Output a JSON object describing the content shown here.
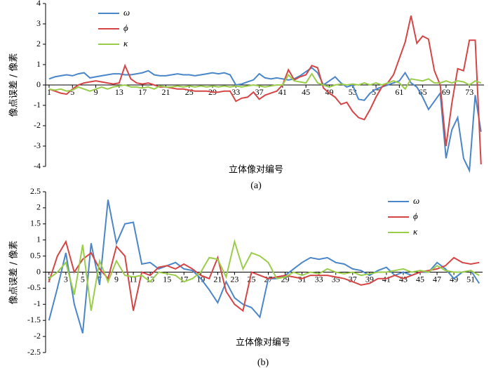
{
  "chart_data": [
    {
      "type": "line",
      "caption": "(a)",
      "xlabel": "立体像对编号",
      "ylabel": "像点误差 / 像素",
      "legend": "upper left",
      "x": [
        1,
        2,
        3,
        4,
        5,
        6,
        7,
        8,
        9,
        10,
        11,
        12,
        13,
        14,
        15,
        16,
        17,
        18,
        19,
        20,
        21,
        22,
        23,
        24,
        25,
        26,
        27,
        28,
        29,
        30,
        31,
        32,
        33,
        34,
        35,
        36,
        37,
        38,
        39,
        40,
        41,
        42,
        43,
        44,
        45,
        46,
        47,
        48,
        49,
        50,
        51,
        52,
        53,
        54,
        55,
        56,
        57,
        58,
        59,
        60,
        61,
        62,
        63,
        64,
        65,
        66,
        67,
        68,
        69,
        70,
        71,
        72,
        73,
        74,
        75
      ],
      "xlim": [
        0.4,
        75.5
      ],
      "xticks": [
        1,
        5,
        9,
        13,
        17,
        21,
        25,
        29,
        33,
        37,
        41,
        45,
        49,
        53,
        57,
        61,
        65,
        69,
        73
      ],
      "ylim": [
        -4,
        4
      ],
      "yticks": [
        -4,
        -3,
        -2,
        -1,
        0,
        1,
        2,
        3,
        4
      ],
      "series": [
        {
          "name": "ω",
          "color": "#4a86c8",
          "values": [
            0.3,
            0.4,
            0.45,
            0.5,
            0.45,
            0.55,
            0.6,
            0.35,
            0.4,
            0.45,
            0.5,
            0.55,
            0.55,
            0.5,
            0.5,
            0.55,
            0.6,
            0.7,
            0.5,
            0.45,
            0.45,
            0.5,
            0.55,
            0.5,
            0.5,
            0.45,
            0.5,
            0.55,
            0.6,
            0.55,
            0.6,
            0.5,
            0.0,
            0.05,
            0.15,
            0.25,
            0.55,
            0.35,
            0.3,
            0.35,
            0.3,
            0.25,
            0.3,
            0.45,
            0.65,
            0.85,
            0.6,
            0.0,
            0.2,
            0.4,
            0.1,
            -0.1,
            0.0,
            -0.7,
            -0.75,
            -0.4,
            -0.2,
            -0.1,
            0.0,
            0.1,
            0.2,
            0.6,
            0.1,
            -0.1,
            -0.6,
            -1.2,
            -0.8,
            -0.4,
            -3.6,
            -2.2,
            -1.6,
            -3.6,
            -4.2,
            -0.5,
            -2.3
          ]
        },
        {
          "name": "ϕ",
          "color": "#d64545",
          "values": [
            -0.2,
            -0.3,
            -0.4,
            -0.45,
            -0.2,
            0.0,
            0.1,
            0.15,
            0.2,
            0.15,
            0.1,
            0.05,
            0.1,
            0.95,
            0.3,
            0.1,
            0.05,
            0.1,
            0.0,
            -0.1,
            -0.1,
            -0.15,
            -0.2,
            -0.2,
            -0.25,
            -0.3,
            -0.3,
            -0.3,
            -0.35,
            -0.35,
            -0.3,
            -0.3,
            -0.8,
            -0.65,
            -0.6,
            -0.35,
            -0.7,
            -0.5,
            -0.4,
            -0.3,
            0.0,
            0.75,
            0.25,
            0.4,
            0.5,
            0.95,
            0.85,
            -0.15,
            -0.4,
            -0.6,
            -0.95,
            -0.85,
            -1.3,
            -1.6,
            -1.7,
            -1.2,
            -0.6,
            -0.1,
            0.1,
            0.5,
            1.3,
            2.1,
            3.4,
            2.05,
            2.4,
            2.25,
            0.7,
            0.0,
            -3.0,
            -0.9,
            0.8,
            0.7,
            2.2,
            2.2,
            -3.9
          ]
        },
        {
          "name": "κ",
          "color": "#9acd4a",
          "values": [
            -0.2,
            -0.25,
            -0.2,
            -0.3,
            -0.25,
            -0.1,
            -0.2,
            -0.3,
            -0.2,
            -0.1,
            -0.2,
            -0.1,
            -0.05,
            0.0,
            -0.1,
            -0.1,
            -0.15,
            -0.1,
            -0.2,
            -0.05,
            -0.1,
            -0.1,
            -0.05,
            -0.1,
            -0.05,
            -0.1,
            -0.05,
            -0.1,
            -0.05,
            -0.1,
            -0.05,
            -0.1,
            -0.05,
            -0.1,
            -0.05,
            0.0,
            -0.05,
            -0.1,
            -0.05,
            0.0,
            0.0,
            0.5,
            0.2,
            0.15,
            0.1,
            0.55,
            0.1,
            0.0,
            -0.1,
            0.0,
            0.05,
            0.0,
            0.05,
            0.0,
            0.1,
            0.0,
            0.1,
            0.0,
            0.1,
            0.2,
            0.1,
            -0.2,
            0.3,
            0.25,
            0.2,
            0.3,
            0.1,
            0.1,
            0.2,
            0.1,
            0.2,
            0.15,
            0.0,
            0.2,
            0.1
          ]
        }
      ]
    },
    {
      "type": "line",
      "caption": "(b)",
      "xlabel": "立体像对编号",
      "ylabel": "像点误差 / 像素",
      "legend": "upper right",
      "x": [
        1,
        2,
        3,
        4,
        5,
        6,
        7,
        8,
        9,
        10,
        11,
        12,
        13,
        14,
        15,
        16,
        17,
        18,
        19,
        20,
        21,
        22,
        23,
        24,
        25,
        26,
        27,
        28,
        29,
        30,
        31,
        32,
        33,
        34,
        35,
        36,
        37,
        38,
        39,
        40,
        41,
        42,
        43,
        44,
        45,
        46,
        47,
        48,
        49,
        50,
        51,
        52
      ],
      "xlim": [
        0.6,
        52.4
      ],
      "xticks": [
        1,
        3,
        5,
        7,
        9,
        11,
        13,
        15,
        17,
        19,
        21,
        23,
        25,
        27,
        29,
        31,
        33,
        35,
        37,
        39,
        41,
        43,
        45,
        47,
        49,
        51
      ],
      "ylim": [
        -2.5,
        2.5
      ],
      "yticks": [
        -2.5,
        -2,
        -1.5,
        -1,
        -0.5,
        0,
        0.5,
        1,
        1.5,
        2,
        2.5
      ],
      "series": [
        {
          "name": "ω",
          "color": "#4a86c8",
          "values": [
            -1.5,
            -0.5,
            0.6,
            -1.0,
            -1.9,
            0.9,
            -0.4,
            2.25,
            0.9,
            1.5,
            1.55,
            0.25,
            0.3,
            0.1,
            0.2,
            0.3,
            0.1,
            0.05,
            -0.2,
            -0.55,
            -0.95,
            -0.3,
            -0.8,
            -1.0,
            -1.1,
            -1.4,
            -0.2,
            -0.2,
            -0.1,
            0.1,
            0.3,
            0.45,
            0.4,
            0.45,
            0.3,
            0.25,
            0.1,
            0.05,
            -0.1,
            0.05,
            0.15,
            -0.1,
            0.0,
            -0.1,
            0.0,
            0.0,
            0.3,
            0.1,
            -0.2,
            0.0,
            0.05,
            -0.35
          ]
        },
        {
          "name": "ϕ",
          "color": "#d64545",
          "values": [
            -0.3,
            0.5,
            0.95,
            0.0,
            0.4,
            0.6,
            0.1,
            -0.2,
            0.8,
            0.5,
            -1.2,
            0.0,
            -0.1,
            0.15,
            0.2,
            0.1,
            0.25,
            0.1,
            -0.1,
            -0.2,
            0.45,
            -0.6,
            -1.0,
            -1.2,
            0.0,
            -0.1,
            -0.2,
            -0.15,
            -0.1,
            -0.15,
            -0.2,
            -0.1,
            -0.1,
            -0.1,
            -0.15,
            -0.2,
            -0.3,
            -0.4,
            -0.35,
            -0.2,
            -0.2,
            -0.1,
            -0.2,
            -0.1,
            0.0,
            0.05,
            0.1,
            0.2,
            0.45,
            0.3,
            0.25,
            0.3
          ]
        },
        {
          "name": "κ",
          "color": "#9acd4a",
          "values": [
            -0.2,
            0.0,
            0.3,
            -0.7,
            0.85,
            -1.2,
            0.35,
            -0.3,
            0.35,
            -0.1,
            -0.15,
            -0.1,
            -0.3,
            0.0,
            -0.05,
            -0.1,
            -0.3,
            -0.2,
            0.0,
            0.45,
            0.4,
            -0.15,
            0.95,
            0.1,
            0.6,
            0.5,
            0.3,
            -0.2,
            -0.15,
            0.0,
            -0.1,
            0.0,
            -0.05,
            0.1,
            0.0,
            -0.05,
            0.0,
            -0.1,
            -0.05,
            0.0,
            0.0,
            0.05,
            0.1,
            0.0,
            0.05,
            0.0,
            0.2,
            0.05,
            0.0,
            0.0,
            0.05,
            -0.1
          ]
        }
      ]
    }
  ]
}
